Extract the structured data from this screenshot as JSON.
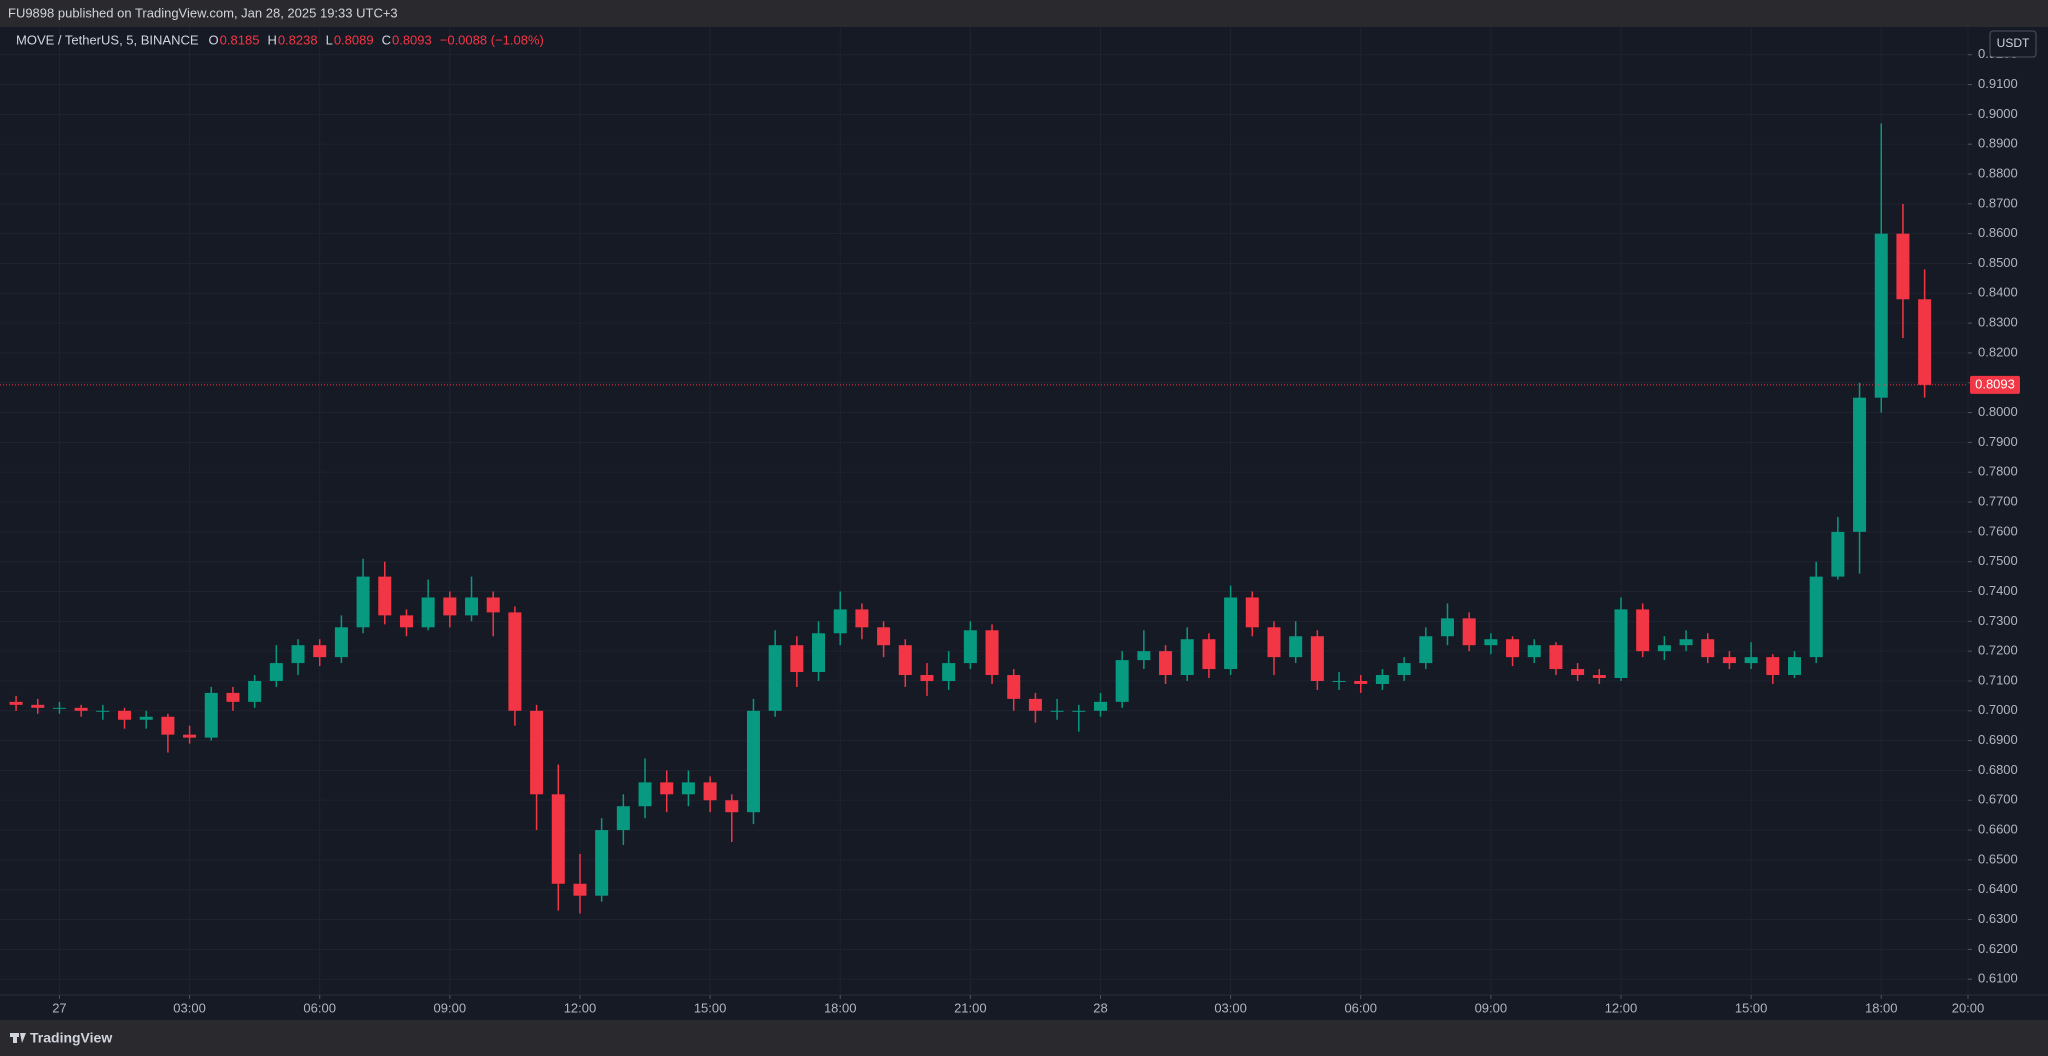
{
  "header": {
    "published": "FU9898 published on TradingView.com, Jan 28, 2025 19:33 UTC+3",
    "footer": "TradingView"
  },
  "chart_data": {
    "type": "candlestick",
    "symbol": "MOVE / TetherUS, 5, BINANCE",
    "ohlc_legend": [
      {
        "label": "O",
        "value": "0.8185"
      },
      {
        "label": "H",
        "value": "0.8238"
      },
      {
        "label": "L",
        "value": "0.8089"
      },
      {
        "label": "C",
        "value": "0.8093"
      }
    ],
    "change": "−0.0088 (−1.08%)",
    "currency": "USDT",
    "up_color": "#089981",
    "down_color": "#f23645",
    "grid": true,
    "price_line": 0.8093,
    "xlim": [
      -1.14,
      44
    ],
    "xticks": [
      {
        "value": 0,
        "label": "27"
      },
      {
        "value": 3,
        "label": "03:00"
      },
      {
        "value": 6,
        "label": "06:00"
      },
      {
        "value": 9,
        "label": "09:00"
      },
      {
        "value": 12,
        "label": "12:00"
      },
      {
        "value": 15,
        "label": "15:00"
      },
      {
        "value": 18,
        "label": "18:00"
      },
      {
        "value": 21,
        "label": "21:00"
      },
      {
        "value": 24,
        "label": "28"
      },
      {
        "value": 27,
        "label": "03:00"
      },
      {
        "value": 30,
        "label": "06:00"
      },
      {
        "value": 33,
        "label": "09:00"
      },
      {
        "value": 36,
        "label": "12:00"
      },
      {
        "value": 39,
        "label": "15:00"
      },
      {
        "value": 42,
        "label": "18:00"
      },
      {
        "value": 44,
        "label": "20:00"
      }
    ],
    "ylim": [
      0.6047,
      0.9293
    ],
    "yticks": [
      {
        "value": 0.61,
        "label": "0.6100"
      },
      {
        "value": 0.62,
        "label": "0.6200"
      },
      {
        "value": 0.63,
        "label": "0.6300"
      },
      {
        "value": 0.64,
        "label": "0.6400"
      },
      {
        "value": 0.65,
        "label": "0.6500"
      },
      {
        "value": 0.66,
        "label": "0.6600"
      },
      {
        "value": 0.67,
        "label": "0.6700"
      },
      {
        "value": 0.68,
        "label": "0.6800"
      },
      {
        "value": 0.69,
        "label": "0.6900"
      },
      {
        "value": 0.7,
        "label": "0.7000"
      },
      {
        "value": 0.71,
        "label": "0.7100"
      },
      {
        "value": 0.72,
        "label": "0.7200"
      },
      {
        "value": 0.73,
        "label": "0.7300"
      },
      {
        "value": 0.74,
        "label": "0.7400"
      },
      {
        "value": 0.75,
        "label": "0.7500"
      },
      {
        "value": 0.76,
        "label": "0.7600"
      },
      {
        "value": 0.77,
        "label": "0.7700"
      },
      {
        "value": 0.78,
        "label": "0.7800"
      },
      {
        "value": 0.79,
        "label": "0.7900"
      },
      {
        "value": 0.8,
        "label": "0.8000"
      },
      {
        "value": 0.81,
        "label": "0.8100"
      },
      {
        "value": 0.82,
        "label": "0.8200"
      },
      {
        "value": 0.83,
        "label": "0.8300"
      },
      {
        "value": 0.84,
        "label": "0.8400"
      },
      {
        "value": 0.85,
        "label": "0.8500"
      },
      {
        "value": 0.86,
        "label": "0.8600"
      },
      {
        "value": 0.87,
        "label": "0.8700"
      },
      {
        "value": 0.88,
        "label": "0.8800"
      },
      {
        "value": 0.89,
        "label": "0.8900"
      },
      {
        "value": 0.9,
        "label": "0.9000"
      },
      {
        "value": 0.91,
        "label": "0.9100"
      },
      {
        "value": 0.92,
        "label": "0.9200"
      }
    ],
    "x": [
      -1.0,
      -0.5,
      0,
      0.5,
      1.0,
      1.5,
      2.0,
      2.5,
      3.0,
      3.5,
      4.0,
      4.5,
      5.0,
      5.5,
      6.0,
      6.5,
      7.0,
      7.5,
      8.0,
      8.5,
      9.0,
      9.5,
      10.0,
      10.5,
      11.0,
      11.5,
      12.0,
      12.5,
      13.0,
      13.5,
      14.0,
      14.5,
      15.0,
      15.5,
      16.0,
      16.5,
      17.0,
      17.5,
      18.0,
      18.5,
      19.0,
      19.5,
      20.0,
      20.5,
      21.0,
      21.5,
      22.0,
      22.5,
      23.0,
      23.5,
      24.0,
      24.5,
      25.0,
      25.5,
      26.0,
      26.5,
      27.0,
      27.5,
      28.0,
      28.5,
      29.0,
      29.5,
      30.0,
      30.5,
      31.0,
      31.5,
      32.0,
      32.5,
      33.0,
      33.5,
      34.0,
      34.5,
      35.0,
      35.5,
      36.0,
      36.5,
      37.0,
      37.5,
      38.0,
      38.5,
      39.0,
      39.5,
      40.0,
      40.5,
      41.0,
      41.5,
      42.0,
      42.5,
      43.0
    ],
    "open": [
      0.703,
      0.702,
      0.701,
      0.701,
      0.7,
      0.7,
      0.697,
      0.698,
      0.692,
      0.691,
      0.706,
      0.703,
      0.71,
      0.716,
      0.722,
      0.718,
      0.728,
      0.745,
      0.732,
      0.728,
      0.738,
      0.732,
      0.738,
      0.733,
      0.7,
      0.672,
      0.642,
      0.638,
      0.66,
      0.668,
      0.676,
      0.672,
      0.676,
      0.67,
      0.666,
      0.7,
      0.722,
      0.713,
      0.726,
      0.734,
      0.728,
      0.722,
      0.712,
      0.71,
      0.716,
      0.727,
      0.712,
      0.704,
      0.7,
      0.7,
      0.7,
      0.703,
      0.717,
      0.72,
      0.712,
      0.724,
      0.714,
      0.738,
      0.728,
      0.718,
      0.725,
      0.71,
      0.71,
      0.709,
      0.712,
      0.716,
      0.725,
      0.731,
      0.722,
      0.724,
      0.718,
      0.722,
      0.714,
      0.712,
      0.711,
      0.734,
      0.72,
      0.722,
      0.724,
      0.718,
      0.716,
      0.718,
      0.712,
      0.718,
      0.745,
      0.76,
      0.805,
      0.86,
      0.838
    ],
    "high": [
      0.705,
      0.704,
      0.703,
      0.702,
      0.702,
      0.701,
      0.7,
      0.699,
      0.695,
      0.708,
      0.708,
      0.712,
      0.722,
      0.724,
      0.724,
      0.732,
      0.751,
      0.75,
      0.734,
      0.744,
      0.74,
      0.745,
      0.74,
      0.735,
      0.702,
      0.682,
      0.652,
      0.664,
      0.672,
      0.684,
      0.68,
      0.68,
      0.678,
      0.672,
      0.704,
      0.727,
      0.725,
      0.73,
      0.74,
      0.736,
      0.73,
      0.724,
      0.716,
      0.72,
      0.73,
      0.729,
      0.714,
      0.706,
      0.704,
      0.702,
      0.706,
      0.72,
      0.727,
      0.722,
      0.728,
      0.726,
      0.742,
      0.74,
      0.73,
      0.73,
      0.727,
      0.713,
      0.712,
      0.714,
      0.718,
      0.728,
      0.736,
      0.733,
      0.726,
      0.725,
      0.724,
      0.723,
      0.716,
      0.714,
      0.738,
      0.736,
      0.725,
      0.727,
      0.726,
      0.72,
      0.723,
      0.719,
      0.72,
      0.75,
      0.765,
      0.81,
      0.897,
      0.87,
      0.848
    ],
    "low": [
      0.7,
      0.699,
      0.699,
      0.698,
      0.697,
      0.694,
      0.694,
      0.686,
      0.689,
      0.69,
      0.7,
      0.701,
      0.708,
      0.712,
      0.715,
      0.716,
      0.726,
      0.729,
      0.725,
      0.727,
      0.728,
      0.73,
      0.725,
      0.695,
      0.66,
      0.633,
      0.632,
      0.636,
      0.655,
      0.664,
      0.666,
      0.668,
      0.666,
      0.656,
      0.662,
      0.698,
      0.708,
      0.71,
      0.722,
      0.724,
      0.718,
      0.708,
      0.705,
      0.707,
      0.714,
      0.709,
      0.7,
      0.696,
      0.697,
      0.693,
      0.698,
      0.701,
      0.714,
      0.709,
      0.71,
      0.711,
      0.712,
      0.725,
      0.712,
      0.716,
      0.707,
      0.707,
      0.706,
      0.707,
      0.71,
      0.714,
      0.722,
      0.72,
      0.719,
      0.715,
      0.716,
      0.712,
      0.71,
      0.709,
      0.71,
      0.718,
      0.717,
      0.72,
      0.716,
      0.714,
      0.714,
      0.709,
      0.711,
      0.716,
      0.744,
      0.746,
      0.8,
      0.825,
      0.805
    ],
    "close": [
      0.702,
      0.701,
      0.701,
      0.7,
      0.7,
      0.697,
      0.698,
      0.692,
      0.691,
      0.706,
      0.703,
      0.71,
      0.716,
      0.722,
      0.718,
      0.728,
      0.745,
      0.732,
      0.728,
      0.738,
      0.732,
      0.738,
      0.733,
      0.7,
      0.672,
      0.642,
      0.638,
      0.66,
      0.668,
      0.676,
      0.672,
      0.676,
      0.67,
      0.666,
      0.7,
      0.722,
      0.713,
      0.726,
      0.734,
      0.728,
      0.722,
      0.712,
      0.71,
      0.716,
      0.727,
      0.712,
      0.704,
      0.7,
      0.7,
      0.7,
      0.703,
      0.717,
      0.72,
      0.712,
      0.724,
      0.714,
      0.738,
      0.728,
      0.718,
      0.725,
      0.71,
      0.71,
      0.709,
      0.712,
      0.716,
      0.725,
      0.731,
      0.722,
      0.724,
      0.718,
      0.722,
      0.714,
      0.712,
      0.711,
      0.734,
      0.72,
      0.722,
      0.724,
      0.718,
      0.716,
      0.718,
      0.712,
      0.718,
      0.745,
      0.76,
      0.805,
      0.86,
      0.838,
      0.8093
    ]
  }
}
